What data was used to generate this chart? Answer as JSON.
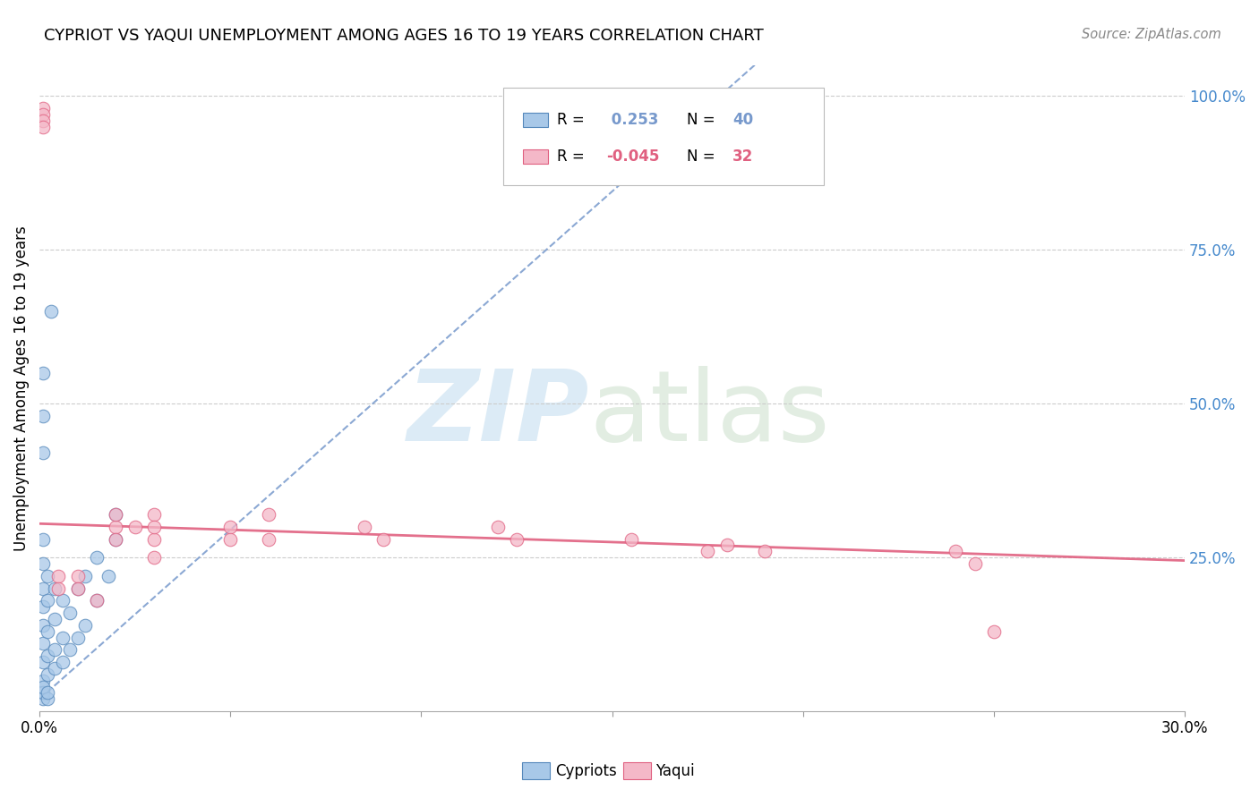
{
  "title": "CYPRIOT VS YAQUI UNEMPLOYMENT AMONG AGES 16 TO 19 YEARS CORRELATION CHART",
  "source": "Source: ZipAtlas.com",
  "ylabel": "Unemployment Among Ages 16 to 19 years",
  "xlim": [
    0.0,
    0.3
  ],
  "ylim": [
    0.0,
    1.05
  ],
  "legend_blue_R": " 0.253",
  "legend_blue_N": "40",
  "legend_pink_R": "-0.045",
  "legend_pink_N": "32",
  "blue_color": "#a8c8e8",
  "pink_color": "#f4b8c8",
  "blue_edge_color": "#5588bb",
  "pink_edge_color": "#e06080",
  "blue_line_color": "#7799cc",
  "pink_line_color": "#e06080",
  "right_tick_color": "#4488cc",
  "blue_slope": 5.5,
  "blue_intercept": 0.02,
  "pink_slope": -0.2,
  "pink_intercept": 0.305,
  "cypriot_x": [
    0.001,
    0.001,
    0.001,
    0.001,
    0.001,
    0.001,
    0.001,
    0.001,
    0.002,
    0.002,
    0.002,
    0.002,
    0.002,
    0.004,
    0.004,
    0.004,
    0.004,
    0.006,
    0.006,
    0.006,
    0.008,
    0.008,
    0.01,
    0.01,
    0.012,
    0.012,
    0.015,
    0.015,
    0.018,
    0.02,
    0.02,
    0.001,
    0.001,
    0.001,
    0.001,
    0.001,
    0.001,
    0.002,
    0.002,
    0.003
  ],
  "cypriot_y": [
    0.05,
    0.08,
    0.11,
    0.14,
    0.17,
    0.2,
    0.24,
    0.28,
    0.06,
    0.09,
    0.13,
    0.18,
    0.22,
    0.07,
    0.1,
    0.15,
    0.2,
    0.08,
    0.12,
    0.18,
    0.1,
    0.16,
    0.12,
    0.2,
    0.14,
    0.22,
    0.18,
    0.25,
    0.22,
    0.28,
    0.32,
    0.42,
    0.48,
    0.55,
    0.02,
    0.03,
    0.04,
    0.02,
    0.03,
    0.65
  ],
  "yaqui_x": [
    0.02,
    0.02,
    0.02,
    0.025,
    0.03,
    0.03,
    0.03,
    0.03,
    0.05,
    0.05,
    0.06,
    0.06,
    0.085,
    0.09,
    0.12,
    0.125,
    0.155,
    0.175,
    0.19,
    0.24,
    0.245,
    0.001,
    0.001,
    0.001,
    0.001,
    0.005,
    0.005,
    0.01,
    0.01,
    0.015,
    0.25,
    0.18
  ],
  "yaqui_y": [
    0.3,
    0.28,
    0.32,
    0.3,
    0.28,
    0.32,
    0.3,
    0.25,
    0.3,
    0.28,
    0.32,
    0.28,
    0.3,
    0.28,
    0.3,
    0.28,
    0.28,
    0.26,
    0.26,
    0.26,
    0.24,
    0.98,
    0.97,
    0.96,
    0.95,
    0.22,
    0.2,
    0.22,
    0.2,
    0.18,
    0.13,
    0.27
  ]
}
